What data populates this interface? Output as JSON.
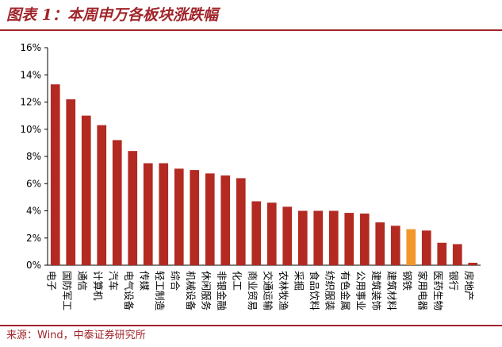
{
  "header": {
    "title": "图表 1：本周申万各板块涨跌幅"
  },
  "footer": {
    "source": "来源：Wind，中泰证券研究所"
  },
  "colors": {
    "bar": "#b22a22",
    "highlight": "#f2972b",
    "accent": "#a0252a"
  },
  "chart_data": {
    "type": "bar",
    "title": "",
    "xlabel": "",
    "ylabel": "",
    "ylim": [
      0,
      16
    ],
    "yticks": [
      "0%",
      "2%",
      "4%",
      "6%",
      "8%",
      "10%",
      "12%",
      "14%",
      "16%"
    ],
    "grid": false,
    "highlight_category": "钢铁",
    "categories": [
      "电子",
      "国防军工",
      "通信",
      "计算机",
      "汽车",
      "电气设备",
      "传媒",
      "轻工制造",
      "综合",
      "机械设备",
      "休闲服务",
      "非银金融",
      "化工",
      "商业贸易",
      "交通运输",
      "农林牧渔",
      "采掘",
      "食品饮料",
      "纺织服装",
      "有色金属",
      "公用事业",
      "建筑装饰",
      "建筑材料",
      "钢铁",
      "家用电器",
      "医药生物",
      "银行",
      "房地产"
    ],
    "values": [
      13.3,
      12.2,
      11.0,
      10.3,
      9.2,
      8.4,
      7.5,
      7.5,
      7.1,
      7.0,
      6.75,
      6.6,
      6.4,
      4.7,
      4.6,
      4.3,
      4.0,
      4.0,
      4.0,
      3.85,
      3.8,
      3.15,
      2.9,
      2.65,
      2.55,
      1.65,
      1.55,
      0.18
    ]
  }
}
